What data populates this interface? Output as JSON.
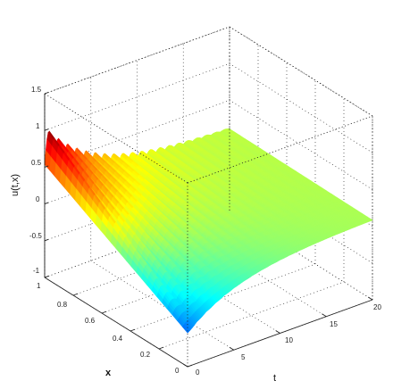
{
  "chart_data": {
    "type": "surface",
    "title": "",
    "xlabel": "t",
    "ylabel": "x",
    "zlabel": "u(t,x)",
    "t_range": [
      0,
      20
    ],
    "x_range": [
      0,
      1
    ],
    "z_range": [
      -1,
      1.5
    ],
    "t_ticks": [
      "0",
      "5",
      "10",
      "15",
      "20"
    ],
    "x_ticks": [
      "0",
      "0.2",
      "0.4",
      "0.6",
      "0.8",
      "1"
    ],
    "z_ticks": [
      "1.5",
      "1",
      "0.5",
      "0",
      "-0.5",
      "-1"
    ],
    "colormap": "jet",
    "grid": true,
    "surface": {
      "description": "damped oscillation",
      "peak_value_near_t0_x1": 1.0,
      "min_value_near_t0_x0": -1.0,
      "steady_value_t20": 0.1,
      "oscillation_period_t": 1.0
    }
  }
}
